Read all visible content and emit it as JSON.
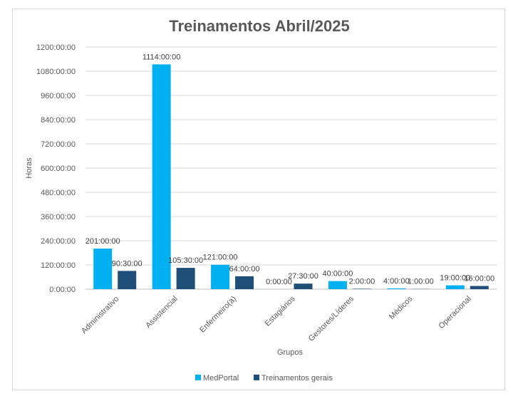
{
  "chart_data": {
    "type": "bar",
    "title": "Treinamentos Abril/2025",
    "xlabel": "Grupos",
    "ylabel": "Horas",
    "categories": [
      "Administrativo",
      "Assistencial",
      "Enfermeiro(a)",
      "Estagiários",
      "Gestores/Líderes",
      "Médicos",
      "Operacional"
    ],
    "ylim": [
      0,
      1200
    ],
    "yticks": [
      "0:00:00",
      "120:00:00",
      "240:00:00",
      "360:00:00",
      "480:00:00",
      "600:00:00",
      "720:00:00",
      "840:00:00",
      "960:00:00",
      "1080:00:00",
      "1200:00:00"
    ],
    "grid": true,
    "legend": "bottom",
    "series": [
      {
        "name": "MedPortal",
        "color": "#00b0f0",
        "values": [
          201,
          1114,
          121,
          0,
          40,
          4,
          19
        ],
        "labels": [
          "201:00:00",
          "1114:00:00",
          "121:00:00",
          "0:00:00",
          "40:00:00",
          "4:00:00",
          "19:00:00"
        ]
      },
      {
        "name": "Treinamentos gerais",
        "color": "#1f4e79",
        "values": [
          90.5,
          105.5,
          64,
          27.5,
          2,
          1,
          16
        ],
        "labels": [
          "90:30:00",
          "105:30:00",
          "64:00:00",
          "27:30:00",
          "2:00:00",
          "1:00:00",
          "16:00:00"
        ]
      }
    ]
  }
}
